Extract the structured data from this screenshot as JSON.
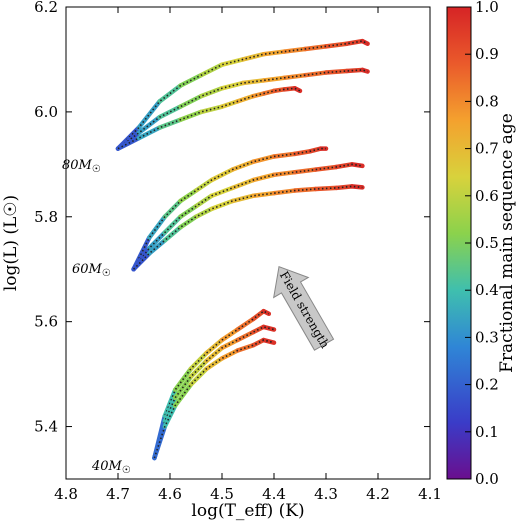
{
  "chart_data": {
    "type": "line",
    "title": "",
    "xlabel": "log(T_eff) (K)",
    "ylabel": "log(L) (L☉)",
    "xlim": [
      4.8,
      4.1
    ],
    "ylim": [
      5.3,
      6.2
    ],
    "x_reversed": true,
    "grid": false,
    "x_ticks": [
      "4.8",
      "4.7",
      "4.6",
      "4.5",
      "4.4",
      "4.3",
      "4.2",
      "4.1"
    ],
    "y_ticks": [
      "5.4",
      "5.6",
      "5.8",
      "6.0",
      "6.2"
    ],
    "colorbar": {
      "label": "Fractional main sequence age",
      "range": [
        0.0,
        1.0
      ],
      "ticks": [
        "0.0",
        "0.1",
        "0.2",
        "0.3",
        "0.4",
        "0.5",
        "0.6",
        "0.7",
        "0.8",
        "0.9",
        "1.0"
      ],
      "colormap": [
        "#6a0f8e",
        "#3a3cc8",
        "#2f86d6",
        "#3fbfae",
        "#8bd24c",
        "#d8d23c",
        "#f4a12e",
        "#ea5a2b",
        "#d62426"
      ]
    },
    "annotations": {
      "masses": [
        "80M",
        "60M",
        "40M"
      ],
      "arrow_label": "Field strength"
    },
    "series": [
      {
        "mass": "80",
        "x": [
          4.7,
          4.66,
          4.62,
          4.58,
          4.54,
          4.5,
          4.46,
          4.42,
          4.38,
          4.34,
          4.3,
          4.26,
          4.23,
          4.22
        ],
        "y": [
          5.93,
          5.97,
          6.02,
          6.05,
          6.07,
          6.09,
          6.1,
          6.11,
          6.115,
          6.12,
          6.125,
          6.13,
          6.135,
          6.13
        ]
      },
      {
        "mass": "80",
        "x": [
          4.7,
          4.66,
          4.62,
          4.58,
          4.54,
          4.5,
          4.46,
          4.42,
          4.38,
          4.34,
          4.3,
          4.26,
          4.23,
          4.22
        ],
        "y": [
          5.93,
          5.96,
          5.99,
          6.01,
          6.03,
          6.045,
          6.055,
          6.06,
          6.065,
          6.07,
          6.075,
          6.078,
          6.08,
          6.077
        ]
      },
      {
        "mass": "80",
        "x": [
          4.7,
          4.66,
          4.62,
          4.58,
          4.54,
          4.5,
          4.47,
          4.44,
          4.42,
          4.4,
          4.38,
          4.36,
          4.35
        ],
        "y": [
          5.93,
          5.95,
          5.97,
          5.985,
          6.0,
          6.01,
          6.02,
          6.03,
          6.035,
          6.04,
          6.043,
          6.045,
          6.04
        ]
      },
      {
        "mass": "60",
        "x": [
          4.67,
          4.64,
          4.61,
          4.58,
          4.55,
          4.52,
          4.48,
          4.44,
          4.4,
          4.36,
          4.33,
          4.31,
          4.3
        ],
        "y": [
          5.7,
          5.76,
          5.8,
          5.83,
          5.85,
          5.87,
          5.89,
          5.905,
          5.915,
          5.92,
          5.925,
          5.93,
          5.93
        ]
      },
      {
        "mass": "60",
        "x": [
          4.67,
          4.64,
          4.61,
          4.58,
          4.55,
          4.52,
          4.48,
          4.44,
          4.4,
          4.36,
          4.32,
          4.28,
          4.25,
          4.23
        ],
        "y": [
          5.7,
          5.74,
          5.77,
          5.8,
          5.82,
          5.84,
          5.855,
          5.87,
          5.88,
          5.885,
          5.89,
          5.895,
          5.9,
          5.897
        ]
      },
      {
        "mass": "60",
        "x": [
          4.67,
          4.64,
          4.61,
          4.58,
          4.55,
          4.52,
          4.48,
          4.44,
          4.4,
          4.36,
          4.32,
          4.28,
          4.25,
          4.23
        ],
        "y": [
          5.7,
          5.73,
          5.755,
          5.78,
          5.8,
          5.815,
          5.83,
          5.84,
          5.845,
          5.85,
          5.853,
          5.855,
          5.858,
          5.856
        ]
      },
      {
        "mass": "40",
        "x": [
          4.63,
          4.61,
          4.59,
          4.56,
          4.53,
          4.5,
          4.47,
          4.44,
          4.42,
          4.41
        ],
        "y": [
          5.34,
          5.42,
          5.47,
          5.51,
          5.54,
          5.565,
          5.585,
          5.605,
          5.62,
          5.615
        ]
      },
      {
        "mass": "40",
        "x": [
          4.63,
          4.61,
          4.59,
          4.56,
          4.53,
          4.5,
          4.47,
          4.44,
          4.42,
          4.4
        ],
        "y": [
          5.34,
          5.41,
          5.455,
          5.495,
          5.525,
          5.55,
          5.565,
          5.58,
          5.59,
          5.585
        ]
      },
      {
        "mass": "40",
        "x": [
          4.63,
          4.61,
          4.59,
          4.56,
          4.53,
          4.5,
          4.47,
          4.44,
          4.42,
          4.4
        ],
        "y": [
          5.34,
          5.4,
          5.44,
          5.48,
          5.51,
          5.53,
          5.545,
          5.555,
          5.565,
          5.56
        ]
      }
    ]
  }
}
